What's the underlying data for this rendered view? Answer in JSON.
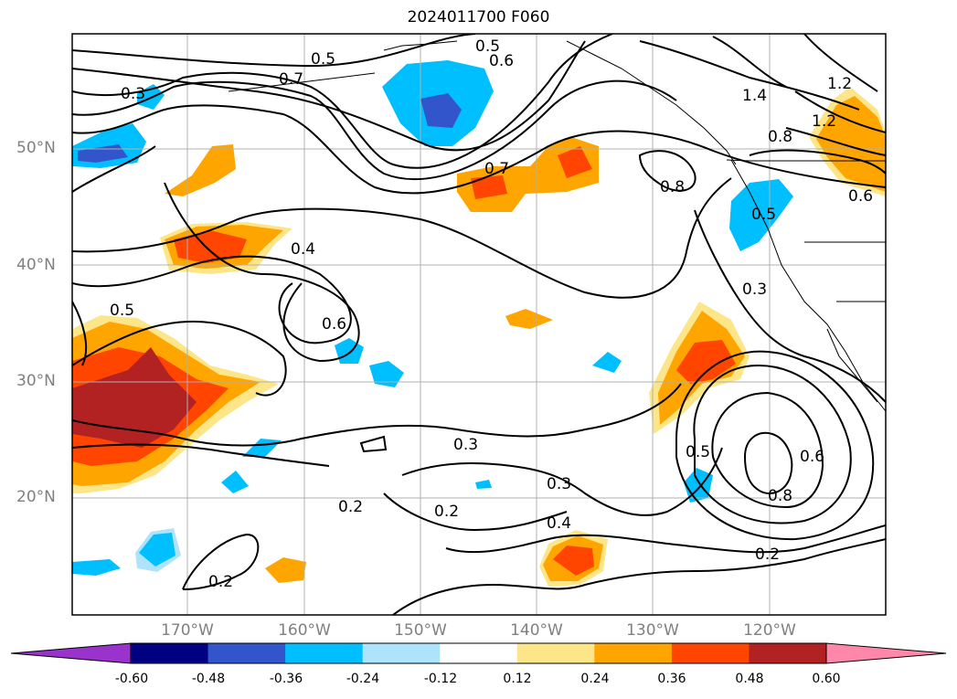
{
  "title": "2024011700 F060",
  "map": {
    "lat_labels": [
      {
        "text": "50°N",
        "lat": 50
      },
      {
        "text": "40°N",
        "lat": 40
      },
      {
        "text": "30°N",
        "lat": 30
      },
      {
        "text": "20°N",
        "lat": 20
      }
    ],
    "lon_labels": [
      {
        "text": "170°W",
        "lon": -170
      },
      {
        "text": "160°W",
        "lon": -160
      },
      {
        "text": "150°W",
        "lon": -150
      },
      {
        "text": "140°W",
        "lon": -140
      },
      {
        "text": "130°W",
        "lon": -130
      },
      {
        "text": "120°W",
        "lon": -120
      }
    ],
    "contour_labels": [
      "0.5",
      "0.6",
      "0.7",
      "0.4",
      "0.3",
      "0.2",
      "0.8",
      "1.2",
      "1.4"
    ],
    "grid": true
  },
  "colorbar": {
    "ticks": [
      "-0.60",
      "-0.48",
      "-0.36",
      "-0.24",
      "-0.12",
      "0.12",
      "0.24",
      "0.36",
      "0.48",
      "0.60"
    ],
    "colors": [
      "#9933cc",
      "#000080",
      "#3355cc",
      "#00bfff",
      "#aee4fb",
      "#ffffff",
      "#fde68a",
      "#ffa500",
      "#ff4500",
      "#b22222",
      "#ff88aa"
    ],
    "extend": "both"
  }
}
